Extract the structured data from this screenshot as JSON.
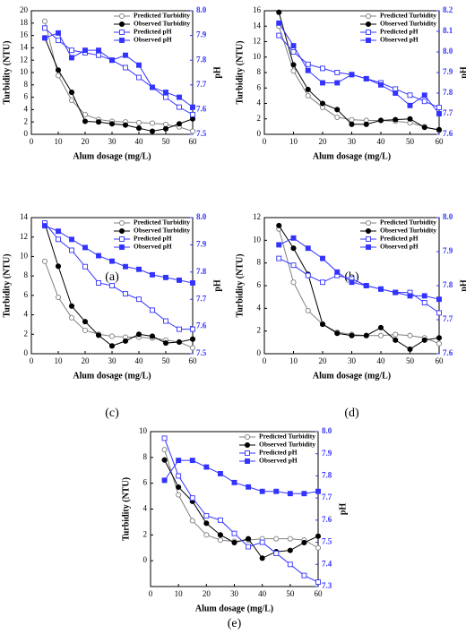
{
  "chart_data": [
    {
      "type": "line",
      "caption": "(a)",
      "xlabel": "Alum dosage (mg/L)",
      "ylabel": "Turbidity (NTU)",
      "y2label": "pH",
      "x": [
        5,
        10,
        15,
        20,
        25,
        30,
        35,
        40,
        45,
        50,
        55,
        60
      ],
      "xlim": [
        0,
        60
      ],
      "xticks": [
        0,
        10,
        20,
        30,
        40,
        50,
        60
      ],
      "ylim": [
        0,
        20
      ],
      "yticks": [
        0,
        2,
        4,
        6,
        8,
        10,
        12,
        14,
        16,
        18,
        20
      ],
      "y2lim": [
        7.5,
        8.0
      ],
      "y2ticks": [
        7.5,
        7.6,
        7.7,
        7.8,
        7.9,
        {
          "value": 8.0,
          "label": "8.0"
        }
      ],
      "series": [
        {
          "name": "Predicted Turbidity",
          "color": "#808080",
          "marker": "circle-open",
          "values": [
            18.3,
            9.5,
            5.5,
            3.2,
            2.4,
            2.1,
            2.0,
            1.9,
            1.8,
            1.6,
            1.2,
            0.5
          ]
        },
        {
          "name": "Observed Turbidity",
          "color": "#000000",
          "marker": "circle-filled",
          "values": [
            15.6,
            10.4,
            6.8,
            2.1,
            2.0,
            1.7,
            1.5,
            1.0,
            0.5,
            0.9,
            1.7,
            2.5
          ]
        },
        {
          "name": "Predicted pH",
          "color": "#3333ff",
          "marker": "square-open",
          "axis": "y2",
          "values": [
            7.93,
            7.88,
            7.84,
            7.83,
            7.82,
            7.8,
            7.77,
            7.73,
            7.69,
            7.65,
            7.61,
            7.58
          ]
        },
        {
          "name": "Observed pH",
          "color": "#3333ff",
          "marker": "square-filled",
          "axis": "y2",
          "values": [
            7.89,
            7.91,
            7.81,
            7.84,
            7.84,
            7.8,
            7.82,
            7.78,
            7.69,
            7.67,
            7.65,
            7.61
          ]
        }
      ]
    },
    {
      "type": "line",
      "caption": "(b)",
      "xlabel": "Alum dosage (mg/L)",
      "ylabel": "Turbidity (NTU)",
      "y2label": "pH",
      "x": [
        5,
        10,
        15,
        20,
        25,
        30,
        35,
        40,
        45,
        50,
        55,
        60
      ],
      "xlim": [
        0,
        60
      ],
      "xticks": [
        0,
        10,
        20,
        30,
        40,
        50,
        60
      ],
      "ylim": [
        0,
        16
      ],
      "yticks": [
        0,
        2,
        4,
        6,
        8,
        10,
        12,
        14,
        16
      ],
      "y2lim": [
        7.6,
        8.2
      ],
      "y2ticks": [
        7.6,
        7.7,
        7.8,
        7.9,
        {
          "value": 8.0,
          "label": "8.0"
        },
        8.1,
        8.2
      ],
      "series": [
        {
          "name": "Predicted Turbidity",
          "color": "#808080",
          "marker": "circle-open",
          "values": [
            14.0,
            8.2,
            5.0,
            3.5,
            2.2,
            1.9,
            1.8,
            1.8,
            1.7,
            1.5,
            1.0,
            0.5
          ]
        },
        {
          "name": "Observed Turbidity",
          "color": "#000000",
          "marker": "circle-filled",
          "values": [
            15.8,
            9.0,
            5.8,
            4.0,
            3.2,
            1.3,
            1.3,
            1.8,
            1.9,
            2.0,
            0.9,
            0.6
          ]
        },
        {
          "name": "Predicted pH",
          "color": "#3333ff",
          "marker": "square-open",
          "axis": "y2",
          "values": [
            8.08,
            8.0,
            7.94,
            7.92,
            7.9,
            7.89,
            7.87,
            7.85,
            7.82,
            7.79,
            7.76,
            7.73
          ]
        },
        {
          "name": "Observed pH",
          "color": "#3333ff",
          "marker": "square-filled",
          "axis": "y2",
          "values": [
            8.14,
            8.03,
            7.91,
            7.85,
            7.85,
            7.89,
            7.87,
            7.84,
            7.8,
            7.74,
            7.79,
            7.7
          ]
        }
      ]
    },
    {
      "type": "line",
      "caption": "(c)",
      "xlabel": "Alum dosage (mg/L)",
      "ylabel": "Turbidity (NTU)",
      "y2label": "pH",
      "x": [
        5,
        10,
        15,
        20,
        25,
        30,
        35,
        40,
        45,
        50,
        55,
        60
      ],
      "xlim": [
        0,
        60
      ],
      "xticks": [
        0,
        10,
        20,
        30,
        40,
        50,
        60
      ],
      "ylim": [
        0,
        14
      ],
      "yticks": [
        0,
        2,
        4,
        6,
        8,
        10,
        12,
        14
      ],
      "y2lim": [
        7.5,
        8.0
      ],
      "y2ticks": [
        7.5,
        7.6,
        7.7,
        7.8,
        7.9,
        {
          "value": 8.0,
          "label": "8.0"
        }
      ],
      "series": [
        {
          "name": "Predicted Turbidity",
          "color": "#808080",
          "marker": "circle-open",
          "values": [
            9.5,
            5.8,
            3.7,
            2.4,
            2.0,
            1.8,
            1.7,
            1.7,
            1.6,
            1.4,
            1.2,
            0.6
          ]
        },
        {
          "name": "Observed Turbidity",
          "color": "#000000",
          "marker": "circle-filled",
          "values": [
            13.4,
            9.0,
            4.9,
            3.3,
            1.9,
            0.8,
            1.3,
            2.0,
            1.8,
            1.1,
            1.2,
            1.5
          ]
        },
        {
          "name": "Predicted pH",
          "color": "#3333ff",
          "marker": "square-open",
          "axis": "y2",
          "values": [
            7.98,
            7.92,
            7.88,
            7.82,
            7.76,
            7.75,
            7.72,
            7.7,
            7.66,
            7.62,
            7.59,
            7.59
          ]
        },
        {
          "name": "Observed pH",
          "color": "#3333ff",
          "marker": "square-filled",
          "axis": "y2",
          "values": [
            7.97,
            7.95,
            7.92,
            7.89,
            7.86,
            7.84,
            7.82,
            7.81,
            7.79,
            7.78,
            7.77,
            7.76
          ]
        }
      ]
    },
    {
      "type": "line",
      "caption": "(d)",
      "xlabel": "Alum dosage (mg/L)",
      "ylabel": "Turbidity (NTU)",
      "y2label": "pH",
      "x": [
        5,
        10,
        15,
        20,
        25,
        30,
        35,
        40,
        45,
        50,
        55,
        60
      ],
      "xlim": [
        0,
        60
      ],
      "xticks": [
        0,
        10,
        20,
        30,
        40,
        50,
        60
      ],
      "ylim": [
        0,
        12
      ],
      "yticks": [
        0,
        2,
        4,
        6,
        8,
        10,
        12
      ],
      "y2lim": [
        7.6,
        8.0
      ],
      "y2ticks": [
        7.6,
        7.7,
        7.8,
        7.9,
        {
          "value": 8.0,
          "label": "8.0"
        }
      ],
      "series": [
        {
          "name": "Predicted Turbidity",
          "color": "#808080",
          "marker": "circle-open",
          "values": [
            11.0,
            6.3,
            3.8,
            2.6,
            1.9,
            1.7,
            1.6,
            1.6,
            1.7,
            1.6,
            1.4,
            0.9
          ]
        },
        {
          "name": "Observed Turbidity",
          "color": "#000000",
          "marker": "circle-filled",
          "values": [
            11.3,
            9.3,
            7.0,
            2.6,
            1.8,
            1.6,
            1.6,
            2.3,
            1.2,
            0.4,
            1.2,
            1.4
          ]
        },
        {
          "name": "Predicted pH",
          "color": "#3333ff",
          "marker": "square-open",
          "axis": "y2",
          "values": [
            7.88,
            7.86,
            7.83,
            7.81,
            7.83,
            7.82,
            7.8,
            7.79,
            7.78,
            7.78,
            7.75,
            7.72
          ]
        },
        {
          "name": "Observed pH",
          "color": "#3333ff",
          "marker": "square-filled",
          "axis": "y2",
          "values": [
            7.92,
            7.94,
            7.91,
            7.88,
            7.84,
            7.81,
            7.8,
            7.79,
            7.78,
            7.77,
            7.77,
            7.76
          ]
        }
      ]
    },
    {
      "type": "line",
      "caption": "(e)",
      "xlabel": "Alum dosage (mg/L)",
      "ylabel": "Turbidity (NTU)",
      "y2label": "pH",
      "x": [
        5,
        10,
        15,
        20,
        25,
        30,
        35,
        40,
        45,
        50,
        55,
        60
      ],
      "xlim": [
        0,
        60
      ],
      "xticks": [
        0,
        10,
        20,
        30,
        40,
        50,
        60
      ],
      "ylim": [
        -2,
        10
      ],
      "yticks": [
        0,
        2,
        4,
        6,
        8,
        10
      ],
      "y2lim": [
        7.3,
        8.0
      ],
      "y2ticks": [
        7.3,
        7.4,
        7.5,
        7.6,
        7.7,
        7.8,
        7.9,
        {
          "value": 8.0,
          "label": "8.0"
        }
      ],
      "series": [
        {
          "name": "Predicted Turbidity",
          "color": "#808080",
          "marker": "circle-open",
          "values": [
            8.6,
            5.1,
            3.1,
            2.0,
            1.6,
            1.5,
            1.6,
            1.7,
            1.7,
            1.7,
            1.6,
            1.0
          ]
        },
        {
          "name": "Observed Turbidity",
          "color": "#000000",
          "marker": "circle-filled",
          "values": [
            7.8,
            5.7,
            4.6,
            2.9,
            2.0,
            1.4,
            1.7,
            0.2,
            0.7,
            0.8,
            1.4,
            1.9
          ]
        },
        {
          "name": "Predicted pH",
          "color": "#3333ff",
          "marker": "square-open",
          "axis": "y2",
          "values": [
            7.97,
            7.8,
            7.7,
            7.62,
            7.6,
            7.54,
            7.48,
            7.5,
            7.45,
            7.4,
            7.35,
            7.32
          ]
        },
        {
          "name": "Observed pH",
          "color": "#3333ff",
          "marker": "square-filled",
          "axis": "y2",
          "values": [
            7.78,
            7.87,
            7.87,
            7.84,
            7.81,
            7.77,
            7.75,
            7.73,
            7.73,
            7.72,
            7.72,
            7.73
          ]
        }
      ]
    }
  ]
}
